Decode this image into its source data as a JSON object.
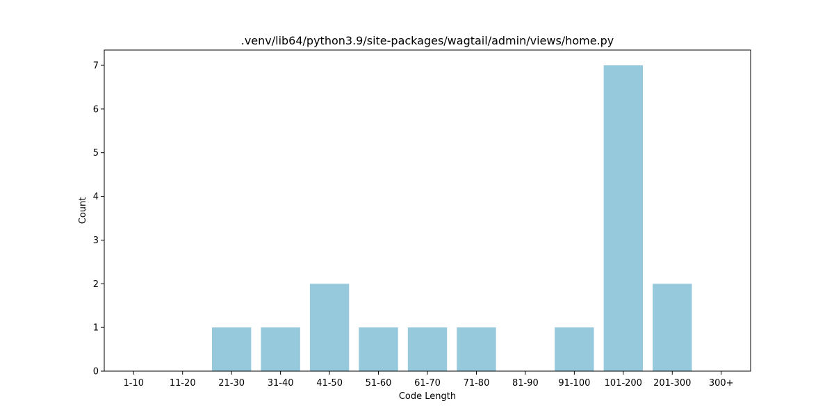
{
  "chart_data": {
    "type": "bar",
    "title": ".venv/lib64/python3.9/site-packages/wagtail/admin/views/home.py",
    "xlabel": "Code Length",
    "ylabel": "Count",
    "categories": [
      "1-10",
      "11-20",
      "21-30",
      "31-40",
      "41-50",
      "51-60",
      "61-70",
      "71-80",
      "81-90",
      "91-100",
      "101-200",
      "201-300",
      "300+"
    ],
    "values": [
      0,
      0,
      1,
      1,
      2,
      1,
      1,
      1,
      0,
      1,
      7,
      2,
      0
    ],
    "yticks": [
      0,
      1,
      2,
      3,
      4,
      5,
      6,
      7
    ],
    "ylim": [
      0,
      7.35
    ],
    "grid": false,
    "bar_color": "#96c9dc"
  }
}
